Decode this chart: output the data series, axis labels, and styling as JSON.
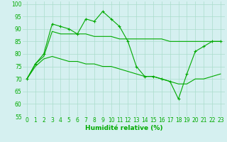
{
  "title": "",
  "xlabel": "Humidité relative (%)",
  "ylabel": "",
  "bg_color": "#d5f0f0",
  "grid_color": "#aaddcc",
  "line_color": "#00aa00",
  "xlim": [
    -0.5,
    23.5
  ],
  "ylim": [
    55,
    101
  ],
  "yticks": [
    55,
    60,
    65,
    70,
    75,
    80,
    85,
    90,
    95,
    100
  ],
  "xticks": [
    0,
    1,
    2,
    3,
    4,
    5,
    6,
    7,
    8,
    9,
    10,
    11,
    12,
    13,
    14,
    15,
    16,
    17,
    18,
    19,
    20,
    21,
    22,
    23
  ],
  "line1_x": [
    0,
    1,
    2,
    3,
    4,
    5,
    6,
    7,
    8,
    9,
    10,
    11,
    12,
    13,
    14,
    15,
    16,
    17,
    18,
    19,
    20,
    21,
    22,
    23
  ],
  "line1_y": [
    70,
    76,
    80,
    92,
    91,
    90,
    88,
    94,
    93,
    97,
    94,
    91,
    85,
    75,
    71,
    71,
    70,
    69,
    62,
    72,
    81,
    83,
    85,
    85
  ],
  "line2_x": [
    0,
    1,
    2,
    3,
    4,
    5,
    6,
    7,
    8,
    9,
    10,
    11,
    12,
    13,
    14,
    15,
    16,
    17,
    18,
    19,
    20,
    21,
    22,
    23
  ],
  "line2_y": [
    70,
    76,
    79,
    89,
    88,
    88,
    88,
    88,
    87,
    87,
    87,
    86,
    86,
    86,
    86,
    86,
    86,
    85,
    85,
    85,
    85,
    85,
    85,
    85
  ],
  "line3_x": [
    0,
    1,
    2,
    3,
    4,
    5,
    6,
    7,
    8,
    9,
    10,
    11,
    12,
    13,
    14,
    15,
    16,
    17,
    18,
    19,
    20,
    21,
    22,
    23
  ],
  "line3_y": [
    70,
    75,
    78,
    79,
    78,
    77,
    77,
    76,
    76,
    75,
    75,
    74,
    73,
    72,
    71,
    71,
    70,
    69,
    68,
    68,
    70,
    70,
    71,
    72
  ],
  "tick_fontsize": 5.5,
  "xlabel_fontsize": 6.5,
  "marker_size": 3,
  "linewidth": 0.8
}
